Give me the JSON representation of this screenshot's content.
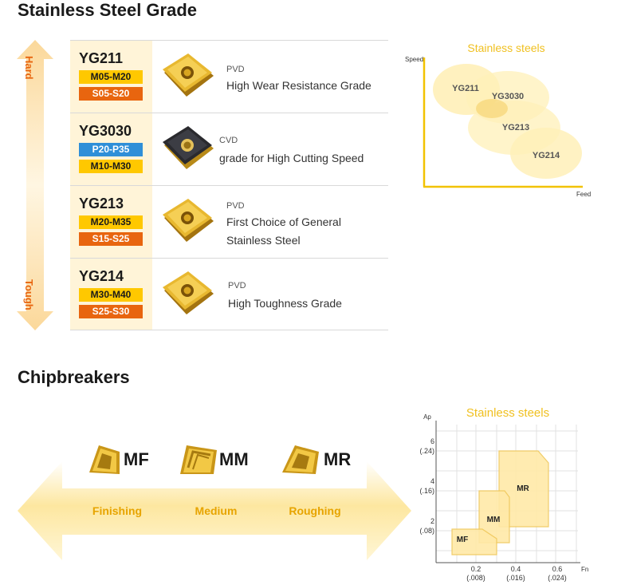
{
  "section1": {
    "title": "Stainless Steel Grade"
  },
  "hardness_axis": {
    "top_label": "Hard",
    "bottom_label": "Tough"
  },
  "grades": [
    {
      "name": "YG211",
      "badges": [
        {
          "text": "M05-M20",
          "kind": "M"
        },
        {
          "text": "S05-S20",
          "kind": "S"
        }
      ],
      "coating": "PVD",
      "desc": [
        "High Wear Resistance Grade"
      ],
      "insert_color": "gold"
    },
    {
      "name": "YG3030",
      "badges": [
        {
          "text": "P20-P35",
          "kind": "P"
        },
        {
          "text": "M10-M30",
          "kind": "M"
        }
      ],
      "coating": "CVD",
      "desc": [
        "grade for High Cutting Speed"
      ],
      "insert_color": "black"
    },
    {
      "name": "YG213",
      "badges": [
        {
          "text": "M20-M35",
          "kind": "M"
        },
        {
          "text": "S15-S25",
          "kind": "S"
        }
      ],
      "coating": "PVD",
      "desc": [
        "First Choice of General",
        "Stainless Steel"
      ],
      "insert_color": "gold"
    },
    {
      "name": "YG214",
      "badges": [
        {
          "text": "M30-M40",
          "kind": "M"
        },
        {
          "text": "S25-S30",
          "kind": "S"
        }
      ],
      "coating": "PVD",
      "desc": [
        "High Toughness Grade"
      ],
      "insert_color": "gold"
    }
  ],
  "speed_feed_chart": {
    "title": "Stainless steels",
    "y_axis_label": "Speed",
    "x_axis_label": "Feed",
    "regions": [
      "YG211",
      "YG3030",
      "YG213",
      "YG214"
    ]
  },
  "section2": {
    "title": "Chipbreakers"
  },
  "chipbreakers": [
    {
      "name": "MF",
      "range": "Finishing"
    },
    {
      "name": "MM",
      "range": "Medium"
    },
    {
      "name": "MR",
      "range": "Roughing"
    }
  ],
  "ap_fn_chart": {
    "title": "Stainless steels",
    "y_axis_label": "Ap",
    "x_axis_label": "Fn",
    "y_ticks": [
      {
        "main": "6",
        "sub": "(.24)"
      },
      {
        "main": "4",
        "sub": "(.16)"
      },
      {
        "main": "2",
        "sub": "(.08)"
      }
    ],
    "x_ticks": [
      {
        "main": "0.2",
        "sub": "(.008)"
      },
      {
        "main": "0.4",
        "sub": "(.016)"
      },
      {
        "main": "0.6",
        "sub": "(.024)"
      }
    ],
    "regions": [
      "MF",
      "MM",
      "MR"
    ]
  },
  "colors": {
    "accent_yellow": "#ffc800",
    "accent_orange": "#e8650f",
    "accent_blue": "#2f8fd8",
    "region_fill": "#ffe9a8"
  }
}
